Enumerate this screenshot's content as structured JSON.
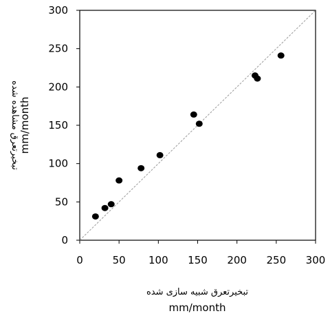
{
  "chart_data": {
    "type": "scatter",
    "title": "",
    "xlabel": {
      "line1": "تبخیرتعرق شبیه سازی شده",
      "line2": "mm/month"
    },
    "ylabel": {
      "line1": "تبخیرتعرق مشاهده شده",
      "line2": "mm/month"
    },
    "xlim": [
      0,
      300
    ],
    "ylim": [
      0,
      300
    ],
    "xticks": [
      0,
      50,
      100,
      150,
      200,
      250,
      300
    ],
    "yticks": [
      0,
      50,
      100,
      150,
      200,
      250,
      300
    ],
    "xtick_labels": [
      "0",
      "50",
      "100",
      "150",
      "200",
      "250",
      "300"
    ],
    "ytick_labels": [
      "0",
      "50",
      "100",
      "150",
      "200",
      "250",
      "300"
    ],
    "grid": false,
    "reference_line": "1:1 dashed grey",
    "point_color": "#000000",
    "reference_line_color": "#9a9a9a",
    "points": [
      {
        "x": 20,
        "y": 31
      },
      {
        "x": 32,
        "y": 42
      },
      {
        "x": 40,
        "y": 47
      },
      {
        "x": 50,
        "y": 78
      },
      {
        "x": 78,
        "y": 94
      },
      {
        "x": 102,
        "y": 111
      },
      {
        "x": 145,
        "y": 164
      },
      {
        "x": 152,
        "y": 152
      },
      {
        "x": 223,
        "y": 215
      },
      {
        "x": 226,
        "y": 211
      },
      {
        "x": 256,
        "y": 241
      }
    ]
  }
}
